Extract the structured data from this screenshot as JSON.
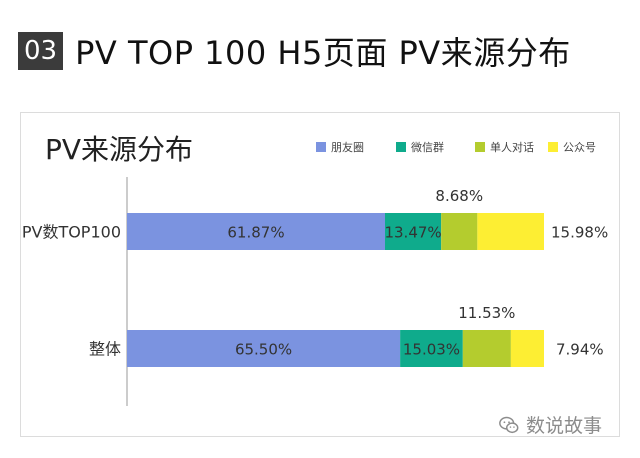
{
  "header": {
    "badge": "03",
    "title": "PV TOP 100 H5页面 PV来源分布"
  },
  "watermark": {
    "text": "数说故事",
    "icon": "wechat-icon"
  },
  "chart_data": {
    "type": "bar",
    "orientation": "horizontal",
    "stacked": true,
    "title": "PV来源分布",
    "categories": [
      "PV数TOP100",
      "整体"
    ],
    "series": [
      {
        "name": "朋友圈",
        "color": "#7b93e0",
        "values": [
          61.87,
          65.5
        ],
        "labels": [
          "61.87%",
          "65.50%"
        ]
      },
      {
        "name": "微信群",
        "color": "#0fab8c",
        "values": [
          13.47,
          15.03
        ],
        "labels": [
          "13.47%",
          "15.03%"
        ]
      },
      {
        "name": "单人对话",
        "color": "#b4cc2e",
        "values": [
          8.68,
          11.53
        ],
        "labels": [
          "8.68%",
          "11.53%"
        ]
      },
      {
        "name": "公众号",
        "color": "#fdee33",
        "values": [
          15.98,
          7.94
        ],
        "labels": [
          "15.98%",
          "7.94%"
        ]
      }
    ],
    "xlim": [
      0,
      100
    ],
    "grid": false,
    "legend": "top-right"
  }
}
